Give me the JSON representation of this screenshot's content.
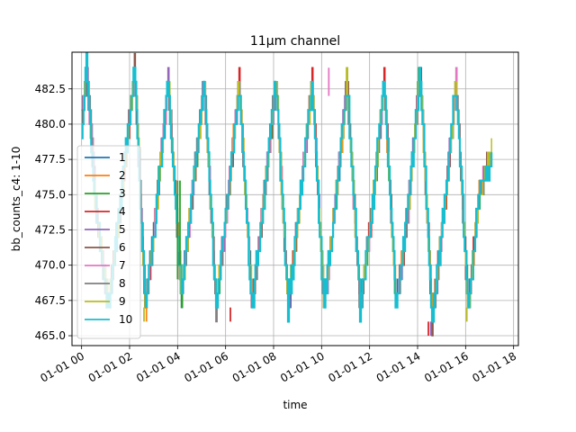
{
  "chart_data": {
    "type": "line",
    "title": "11μm channel",
    "xlabel": "time",
    "ylabel": "bb_counts_c4: 1-10",
    "xlim": [
      -0.4,
      18.2
    ],
    "ylim": [
      464.3,
      485.1
    ],
    "x_tick_values": [
      0,
      2,
      4,
      6,
      8,
      10,
      12,
      14,
      16,
      18
    ],
    "x_tick_labels": [
      "01-01 00",
      "01-01 02",
      "01-01 04",
      "01-01 06",
      "01-01 08",
      "01-01 10",
      "01-01 12",
      "01-01 14",
      "01-01 16",
      "01-01 18"
    ],
    "y_ticks": [
      465.0,
      467.5,
      470.0,
      472.5,
      475.0,
      477.5,
      480.0,
      482.5
    ],
    "y_tick_labels": [
      "465.0",
      "467.5",
      "470.0",
      "472.5",
      "475.0",
      "477.5",
      "480.0",
      "482.5"
    ],
    "grid": true,
    "legend_position": "center-left",
    "series_names": [
      "1",
      "2",
      "3",
      "4",
      "5",
      "6",
      "7",
      "8",
      "9",
      "10"
    ],
    "colors": [
      "#1f77b4",
      "#ff7f0e",
      "#2ca02c",
      "#d62728",
      "#9467bd",
      "#8c564b",
      "#e377c2",
      "#7f7f7f",
      "#bcbd22",
      "#17becf"
    ],
    "envelope": {
      "x_hours": [
        0.0,
        0.2,
        0.6,
        1.1,
        1.6,
        2.2,
        2.65,
        3.1,
        3.6,
        4.15,
        4.6,
        5.1,
        5.6,
        6.1,
        6.55,
        7.1,
        7.6,
        8.1,
        8.6,
        9.05,
        9.6,
        10.1,
        10.6,
        11.05,
        11.6,
        12.1,
        12.6,
        13.1,
        13.6,
        14.1,
        14.6,
        15.1,
        15.6,
        16.1,
        16.55,
        17.1
      ],
      "values": [
        480,
        484,
        474,
        467,
        474,
        484,
        467,
        474,
        483,
        468,
        475,
        483,
        467,
        475,
        483,
        467,
        475,
        483,
        467,
        474,
        483,
        467,
        475,
        483,
        467,
        474,
        483,
        467,
        474,
        484,
        466,
        474,
        483,
        467,
        475,
        478
      ]
    },
    "spikes": [
      {
        "x": 2.6,
        "y1": 467,
        "y2": 466,
        "series": "9"
      },
      {
        "x": 2.7,
        "y1": 467,
        "y2": 466,
        "series": "2"
      },
      {
        "x": 4.0,
        "y1": 469,
        "y2": 476,
        "series": "3"
      },
      {
        "x": 4.1,
        "y1": 470,
        "y2": 476,
        "series": "3"
      },
      {
        "x": 6.2,
        "y1": 467,
        "y2": 466,
        "series": "4"
      },
      {
        "x": 10.3,
        "y1": 482,
        "y2": 484,
        "series": "7"
      },
      {
        "x": 14.45,
        "y1": 466,
        "y2": 465,
        "series": "4"
      },
      {
        "x": 14.55,
        "y1": 466,
        "y2": 465,
        "series": "5"
      },
      {
        "x": 16.05,
        "y1": 467,
        "y2": 466,
        "series": "9"
      }
    ]
  }
}
